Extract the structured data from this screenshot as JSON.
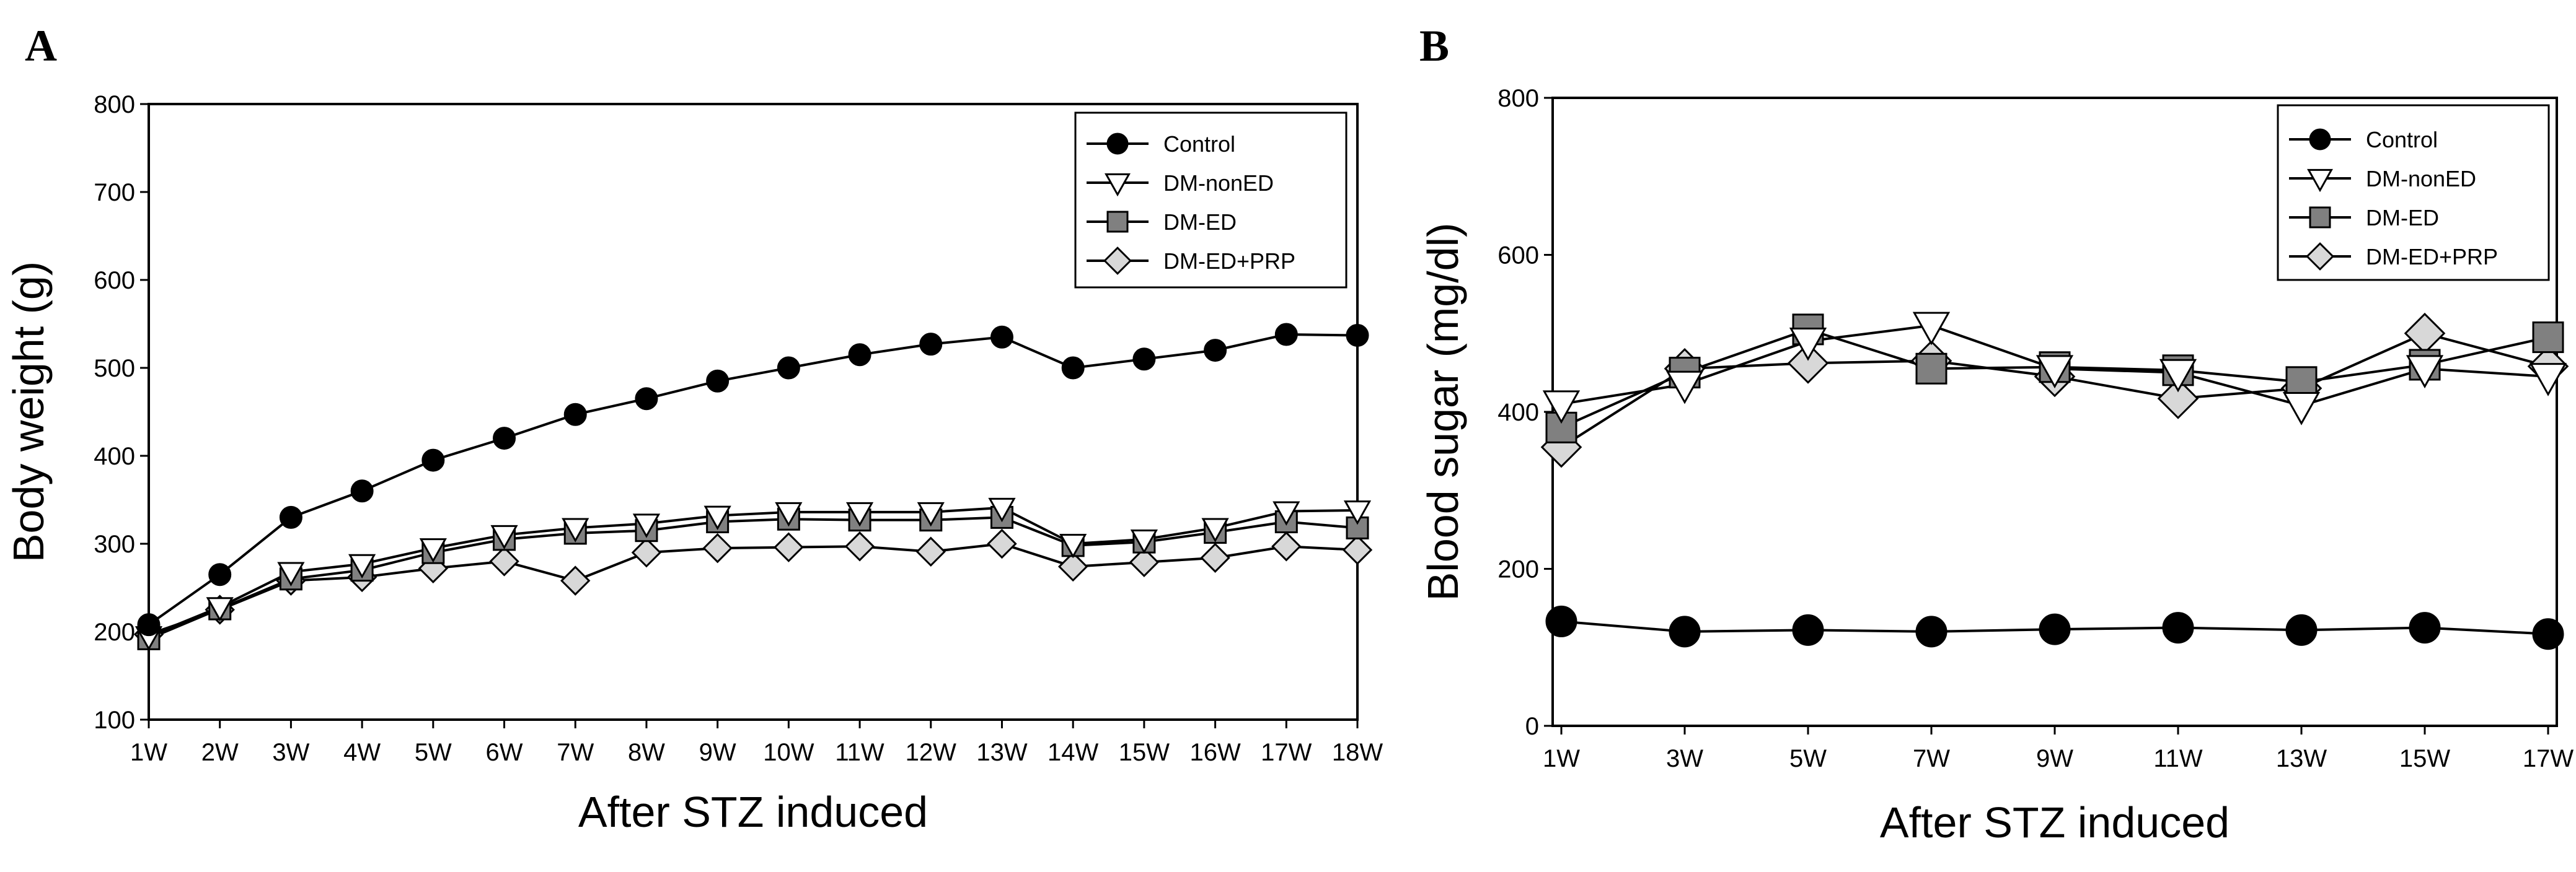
{
  "chart_data": [
    {
      "type": "line",
      "panel_label": "A",
      "title": "",
      "xlabel": "After STZ induced",
      "ylabel": "Body weight (g)",
      "categories": [
        "1W",
        "2W",
        "3W",
        "4W",
        "5W",
        "6W",
        "7W",
        "8W",
        "9W",
        "10W",
        "11W",
        "12W",
        "13W",
        "14W",
        "15W",
        "16W",
        "17W",
        "18W"
      ],
      "ylim": [
        100,
        800
      ],
      "yticks": [
        100,
        200,
        300,
        400,
        500,
        600,
        700,
        800
      ],
      "grid": false,
      "legend_position": "top-right",
      "series": [
        {
          "name": "Control",
          "marker": "circle",
          "fill": "#000000",
          "values": [
            208,
            265,
            330,
            360,
            395,
            420,
            447,
            465,
            485,
            500,
            515,
            527,
            535,
            500,
            510,
            520,
            538,
            537
          ]
        },
        {
          "name": "DM-nonED",
          "marker": "triangle-down",
          "fill": "#ffffff",
          "values": [
            195,
            228,
            268,
            277,
            295,
            310,
            318,
            323,
            332,
            336,
            336,
            336,
            341,
            300,
            305,
            318,
            337,
            338
          ]
        },
        {
          "name": "DM-ED",
          "marker": "square",
          "fill": "#808080",
          "values": [
            192,
            226,
            260,
            270,
            290,
            305,
            312,
            315,
            325,
            328,
            327,
            327,
            330,
            298,
            302,
            313,
            325,
            318
          ]
        },
        {
          "name": "DM-ED+PRP",
          "marker": "diamond",
          "fill": "#d8d8d8",
          "values": [
            197,
            225,
            258,
            262,
            272,
            280,
            258,
            290,
            295,
            296,
            297,
            291,
            300,
            274,
            279,
            284,
            297,
            293
          ]
        }
      ]
    },
    {
      "type": "line",
      "panel_label": "B",
      "title": "",
      "xlabel": "After STZ induced",
      "ylabel": "Blood sugar (mg/dl)",
      "categories": [
        "1W",
        "3W",
        "5W",
        "7W",
        "9W",
        "11W",
        "13W",
        "15W",
        "17W"
      ],
      "ylim": [
        0,
        800
      ],
      "yticks": [
        0,
        200,
        400,
        600,
        800
      ],
      "grid": false,
      "legend_position": "top-right",
      "series": [
        {
          "name": "Control",
          "marker": "circle",
          "fill": "#000000",
          "values": [
            133,
            120,
            122,
            120,
            123,
            125,
            122,
            125,
            117
          ]
        },
        {
          "name": "DM-nonED",
          "marker": "triangle-down",
          "fill": "#ffffff",
          "values": [
            410,
            435,
            490,
            510,
            455,
            450,
            408,
            455,
            445
          ]
        },
        {
          "name": "DM-ED",
          "marker": "square",
          "fill": "#808080",
          "values": [
            380,
            450,
            505,
            455,
            457,
            453,
            438,
            460,
            495
          ]
        },
        {
          "name": "DM-ED+PRP",
          "marker": "diamond",
          "fill": "#d8d8d8",
          "values": [
            355,
            455,
            462,
            465,
            445,
            417,
            430,
            500,
            458
          ]
        }
      ]
    }
  ]
}
